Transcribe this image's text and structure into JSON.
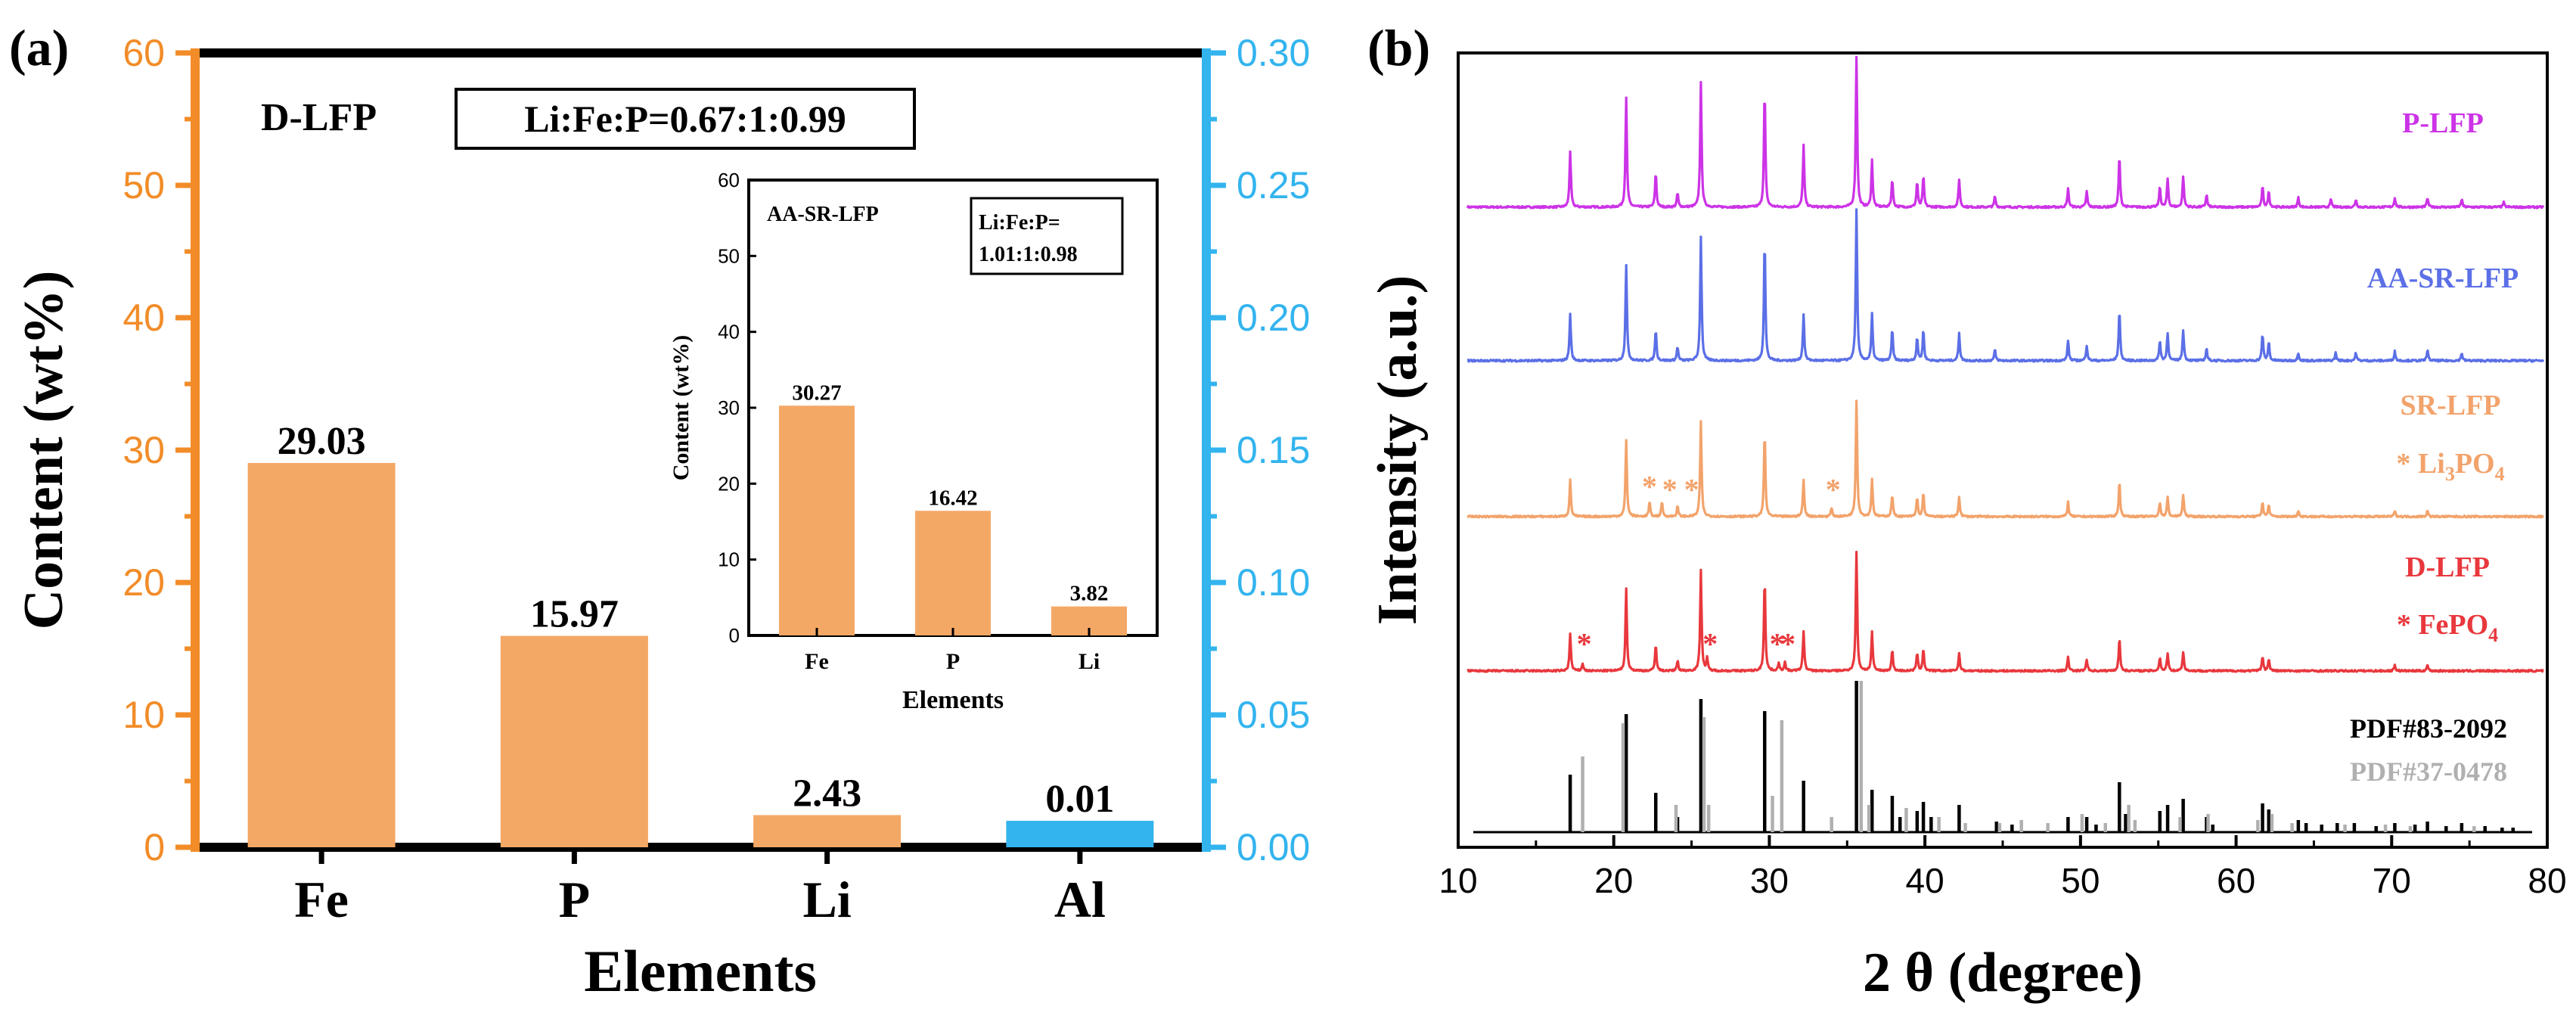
{
  "colors": {
    "fe_bar": "#F4A865",
    "al_bar": "#33B4EE",
    "left_axis": "#F28C28",
    "right_axis": "#33B4EE",
    "p_lfp": "#CC33E6",
    "aa_sr_lfp": "#5B6FE6",
    "sr_lfp": "#F2A36B",
    "d_lfp": "#E8383D",
    "pdf_83": "#000000",
    "pdf_37": "#B0B0B0"
  },
  "chart_data": [
    {
      "panel_label": "(a)",
      "type": "bar",
      "title": "D-LFP",
      "ratio_label": "Li:Fe:P=0.67:1:0.99",
      "xlabel": "Elements",
      "ylabel": "Content (wt%)",
      "categories": [
        "Fe",
        "P",
        "Li",
        "Al"
      ],
      "values": [
        29.03,
        15.97,
        2.43,
        0.01
      ],
      "value_labels": [
        "29.03",
        "15.97",
        "2.43",
        "0.01"
      ],
      "axis_assignment": [
        "left",
        "left",
        "left",
        "right"
      ],
      "ylim_left": [
        0,
        60
      ],
      "yticks_left": [
        "0",
        "10",
        "20",
        "30",
        "40",
        "50",
        "60"
      ],
      "ylim_right": [
        0,
        0.3
      ],
      "yticks_right": [
        "0.00",
        "0.05",
        "0.10",
        "0.15",
        "0.20",
        "0.25",
        "0.30"
      ],
      "inset": {
        "type": "bar",
        "title": "AA-SR-LFP",
        "ratio_label_line1": "Li:Fe:P=",
        "ratio_label_line2": "1.01:1:0.98",
        "xlabel": "Elements",
        "ylabel": "Content (wt%)",
        "categories": [
          "Fe",
          "P",
          "Li"
        ],
        "values": [
          30.27,
          16.42,
          3.82
        ],
        "value_labels": [
          "30.27",
          "16.42",
          "3.82"
        ],
        "ylim": [
          0,
          60
        ],
        "yticks": [
          "0",
          "10",
          "20",
          "30",
          "40",
          "50",
          "60"
        ]
      }
    },
    {
      "panel_label": "(b)",
      "type": "line",
      "title": "",
      "xlabel": "2 θ (degree)",
      "ylabel": "Intensity (a.u.)",
      "xlim": [
        10,
        80
      ],
      "xticks": [
        "10",
        "20",
        "30",
        "40",
        "50",
        "60",
        "70",
        "80"
      ],
      "series": [
        {
          "name": "P-LFP",
          "key": "p_lfp",
          "marker": "",
          "marker_label": "",
          "offset": 4,
          "peaks": [
            [
              17.2,
              0.36
            ],
            [
              20.8,
              0.7
            ],
            [
              22.7,
              0.22
            ],
            [
              24.1,
              0.09
            ],
            [
              25.6,
              0.8
            ],
            [
              29.7,
              0.75
            ],
            [
              32.2,
              0.4
            ],
            [
              35.6,
              0.97
            ],
            [
              36.6,
              0.3
            ],
            [
              37.9,
              0.18
            ],
            [
              39.5,
              0.16
            ],
            [
              39.9,
              0.2
            ],
            [
              42.2,
              0.18
            ],
            [
              44.5,
              0.07
            ],
            [
              49.2,
              0.12
            ],
            [
              50.4,
              0.1
            ],
            [
              52.5,
              0.33
            ],
            [
              55.1,
              0.13
            ],
            [
              55.6,
              0.18
            ],
            [
              56.6,
              0.2
            ],
            [
              58.1,
              0.08
            ],
            [
              61.7,
              0.13
            ],
            [
              62.1,
              0.1
            ],
            [
              64.0,
              0.06
            ],
            [
              66.1,
              0.05
            ],
            [
              67.7,
              0.05
            ],
            [
              70.2,
              0.06
            ],
            [
              72.3,
              0.06
            ],
            [
              74.5,
              0.05
            ],
            [
              77.2,
              0.03
            ]
          ]
        },
        {
          "name": "AA-SR-LFP",
          "key": "aa_sr_lfp",
          "marker": "",
          "marker_label": "",
          "offset": 3,
          "peaks": [
            [
              17.2,
              0.3
            ],
            [
              20.8,
              0.62
            ],
            [
              22.7,
              0.2
            ],
            [
              24.1,
              0.09
            ],
            [
              25.6,
              0.8
            ],
            [
              29.7,
              0.78
            ],
            [
              32.2,
              0.3
            ],
            [
              35.6,
              0.97
            ],
            [
              36.6,
              0.3
            ],
            [
              37.9,
              0.2
            ],
            [
              39.5,
              0.15
            ],
            [
              39.9,
              0.2
            ],
            [
              42.2,
              0.18
            ],
            [
              44.5,
              0.07
            ],
            [
              49.2,
              0.13
            ],
            [
              50.4,
              0.1
            ],
            [
              52.5,
              0.33
            ],
            [
              55.1,
              0.13
            ],
            [
              55.6,
              0.18
            ],
            [
              56.6,
              0.2
            ],
            [
              58.1,
              0.08
            ],
            [
              61.7,
              0.17
            ],
            [
              62.1,
              0.12
            ],
            [
              64.0,
              0.05
            ],
            [
              66.4,
              0.05
            ],
            [
              67.7,
              0.05
            ],
            [
              70.2,
              0.06
            ],
            [
              72.3,
              0.07
            ],
            [
              74.5,
              0.05
            ]
          ]
        },
        {
          "name": "SR-LFP",
          "key": "sr_lfp",
          "marker": "*",
          "marker_label": "Li3PO4",
          "offset": 2,
          "peaks": [
            [
              17.2,
              0.25
            ],
            [
              20.8,
              0.52
            ],
            [
              22.3,
              0.1
            ],
            [
              23.1,
              0.1
            ],
            [
              24.1,
              0.07
            ],
            [
              25.6,
              0.65
            ],
            [
              29.7,
              0.58
            ],
            [
              32.2,
              0.25
            ],
            [
              34.0,
              0.06
            ],
            [
              35.6,
              0.8
            ],
            [
              36.6,
              0.26
            ],
            [
              37.9,
              0.15
            ],
            [
              39.5,
              0.13
            ],
            [
              39.9,
              0.16
            ],
            [
              42.2,
              0.14
            ],
            [
              49.2,
              0.1
            ],
            [
              52.5,
              0.24
            ],
            [
              55.1,
              0.1
            ],
            [
              55.6,
              0.13
            ],
            [
              56.6,
              0.15
            ],
            [
              61.7,
              0.1
            ],
            [
              62.1,
              0.08
            ],
            [
              64.0,
              0.04
            ],
            [
              70.2,
              0.04
            ],
            [
              72.3,
              0.04
            ]
          ],
          "star_positions": [
            22.3,
            23.6,
            25.0,
            34.1
          ]
        },
        {
          "name": "D-LFP",
          "key": "d_lfp",
          "marker": "*",
          "marker_label": "FePO4",
          "offset": 1,
          "peaks": [
            [
              17.2,
              0.25
            ],
            [
              18.0,
              0.05
            ],
            [
              20.8,
              0.55
            ],
            [
              22.7,
              0.18
            ],
            [
              24.1,
              0.07
            ],
            [
              25.6,
              0.68
            ],
            [
              26.0,
              0.08
            ],
            [
              29.7,
              0.62
            ],
            [
              30.6,
              0.05
            ],
            [
              31.0,
              0.06
            ],
            [
              32.2,
              0.27
            ],
            [
              35.6,
              0.8
            ],
            [
              36.6,
              0.26
            ],
            [
              37.9,
              0.14
            ],
            [
              39.5,
              0.12
            ],
            [
              39.9,
              0.15
            ],
            [
              42.2,
              0.12
            ],
            [
              49.2,
              0.09
            ],
            [
              50.4,
              0.08
            ],
            [
              52.5,
              0.22
            ],
            [
              55.1,
              0.09
            ],
            [
              55.6,
              0.12
            ],
            [
              56.6,
              0.13
            ],
            [
              61.7,
              0.1
            ],
            [
              62.1,
              0.08
            ],
            [
              70.2,
              0.04
            ],
            [
              72.3,
              0.04
            ]
          ],
          "star_positions": [
            18.1,
            26.2,
            30.5,
            31.2
          ]
        },
        {
          "name": "PDF#83-2092",
          "key": "pdf_83",
          "offset": 0,
          "sticks": [
            [
              17.2,
              0.38
            ],
            [
              20.8,
              0.78
            ],
            [
              22.7,
              0.26
            ],
            [
              24.1,
              0.1
            ],
            [
              25.6,
              0.88
            ],
            [
              29.7,
              0.8
            ],
            [
              32.2,
              0.34
            ],
            [
              35.6,
              1.0
            ],
            [
              36.6,
              0.28
            ],
            [
              37.9,
              0.24
            ],
            [
              38.4,
              0.1
            ],
            [
              39.5,
              0.14
            ],
            [
              39.9,
              0.2
            ],
            [
              40.4,
              0.1
            ],
            [
              42.2,
              0.18
            ],
            [
              44.6,
              0.07
            ],
            [
              45.6,
              0.05
            ],
            [
              49.2,
              0.1
            ],
            [
              50.4,
              0.1
            ],
            [
              51.0,
              0.05
            ],
            [
              52.5,
              0.33
            ],
            [
              52.9,
              0.12
            ],
            [
              55.1,
              0.14
            ],
            [
              55.6,
              0.18
            ],
            [
              56.6,
              0.22
            ],
            [
              58.1,
              0.1
            ],
            [
              58.5,
              0.05
            ],
            [
              61.7,
              0.19
            ],
            [
              62.1,
              0.15
            ],
            [
              64.0,
              0.08
            ],
            [
              64.5,
              0.06
            ],
            [
              65.5,
              0.05
            ],
            [
              66.5,
              0.06
            ],
            [
              67.6,
              0.06
            ],
            [
              69.0,
              0.04
            ],
            [
              70.2,
              0.06
            ],
            [
              71.5,
              0.05
            ],
            [
              72.3,
              0.07
            ],
            [
              73.5,
              0.04
            ],
            [
              74.5,
              0.06
            ],
            [
              76.0,
              0.04
            ],
            [
              77.1,
              0.03
            ],
            [
              77.8,
              0.03
            ]
          ]
        },
        {
          "name": "PDF#37-0478",
          "key": "pdf_37",
          "offset": 0,
          "sticks": [
            [
              18.0,
              0.5
            ],
            [
              20.6,
              0.72
            ],
            [
              24.0,
              0.18
            ],
            [
              25.8,
              0.76
            ],
            [
              26.1,
              0.18
            ],
            [
              30.2,
              0.24
            ],
            [
              30.8,
              0.74
            ],
            [
              34.0,
              0.1
            ],
            [
              35.9,
              1.0
            ],
            [
              36.4,
              0.18
            ],
            [
              38.8,
              0.16
            ],
            [
              40.9,
              0.1
            ],
            [
              42.6,
              0.06
            ],
            [
              44.8,
              0.06
            ],
            [
              46.2,
              0.08
            ],
            [
              47.9,
              0.06
            ],
            [
              50.1,
              0.12
            ],
            [
              51.6,
              0.06
            ],
            [
              53.1,
              0.18
            ],
            [
              53.5,
              0.08
            ],
            [
              56.4,
              0.1
            ],
            [
              58.2,
              0.12
            ],
            [
              61.4,
              0.08
            ],
            [
              62.3,
              0.12
            ],
            [
              63.6,
              0.06
            ],
            [
              67.0,
              0.05
            ],
            [
              69.6,
              0.05
            ],
            [
              71.2,
              0.04
            ],
            [
              75.3,
              0.04
            ]
          ]
        }
      ],
      "legend": [
        {
          "text": "PDF#83-2092",
          "key": "pdf_83"
        },
        {
          "text": "PDF#37-0478",
          "key": "pdf_37"
        }
      ]
    }
  ]
}
